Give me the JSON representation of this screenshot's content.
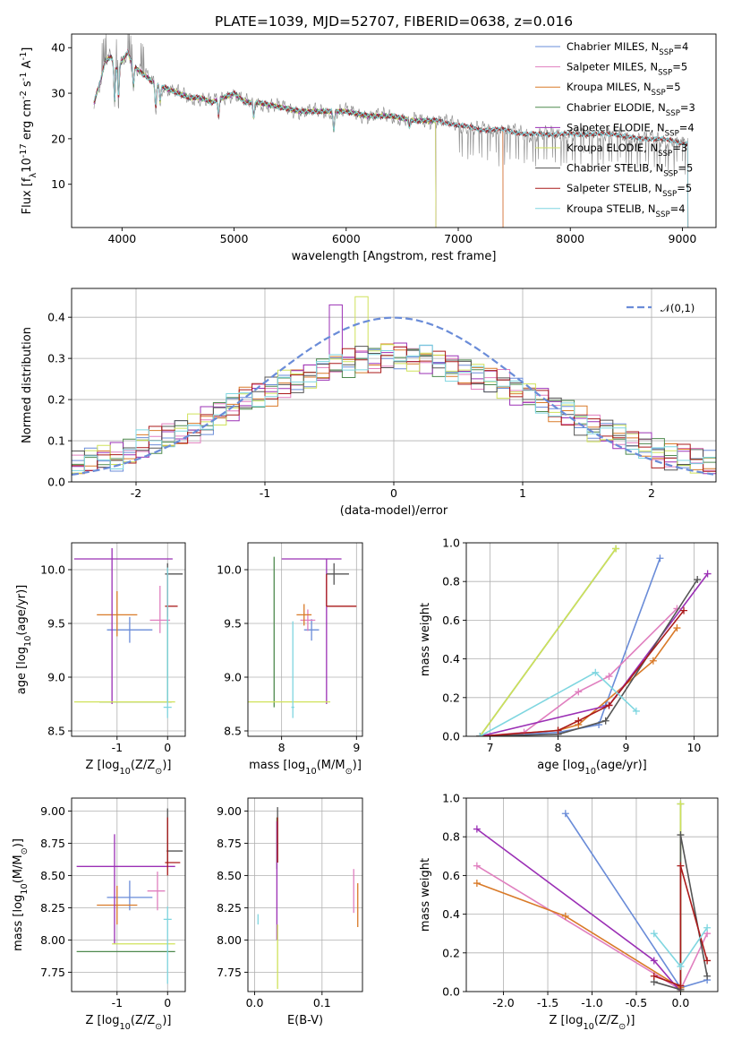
{
  "title": "PLATE=1039, MJD=52707, FIBERID=0638, z=0.016",
  "colors": {
    "Chabrier MILES": "#6a8cd8",
    "Salpeter MILES": "#e07fbf",
    "Kroupa MILES": "#d97a28",
    "Chabrier ELODIE": "#4f8a4f",
    "Salpeter ELODIE": "#9b30b5",
    "Kroupa ELODIE": "#cfe25a",
    "Chabrier STELIB": "#555555",
    "Salpeter STELIB": "#aa1a1a",
    "Kroupa STELIB": "#7fd6e0"
  },
  "chart_data": [
    {
      "type": "line",
      "id": "spectrum",
      "title": "PLATE=1039, MJD=52707, FIBERID=0638, z=0.016",
      "xlabel": "wavelength [Angstrom, rest frame]",
      "ylabel": "Flux [f$_\\lambda$10$^{-17}$ erg cm$^{-2}$ s$^{-1}$ A$^{-1}$]",
      "xlim": [
        3550,
        9300
      ],
      "ylim": [
        0.5,
        43
      ],
      "xticks": [
        4000,
        5000,
        6000,
        7000,
        8000,
        9000
      ],
      "yticks": [
        10,
        20,
        30,
        40
      ],
      "grid": false,
      "legend_position": "upper-right",
      "legend": [
        "Chabrier MILES, N$_{SSP}$=4",
        "Salpeter MILES, N$_{SSP}$=5",
        "Kroupa MILES, N$_{SSP}$=5",
        "Chabrier ELODIE, N$_{SSP}$=3",
        "Salpeter ELODIE, N$_{SSP}$=4",
        "Kroupa ELODIE, N$_{SSP}$=3",
        "Chabrier STELIB, N$_{SSP}$=5",
        "Salpeter STELIB, N$_{SSP}$=5",
        "Kroupa STELIB, N$_{SSP}$=4"
      ],
      "continuum": {
        "x": [
          3750,
          3800,
          3850,
          3900,
          3950,
          4000,
          4050,
          4100,
          4150,
          4200,
          4300,
          4400,
          4500,
          4600,
          4700,
          4800,
          4900,
          5000,
          5100,
          5200,
          5400,
          5600,
          5800,
          6000,
          6200,
          6400,
          6600,
          6800,
          7000,
          7200,
          7400,
          7600,
          7800,
          8000,
          8200,
          8400,
          8600,
          8800,
          9000
        ],
        "y": [
          28,
          32,
          37,
          38,
          36,
          37,
          39,
          36,
          35,
          34,
          32,
          31,
          30,
          29,
          29,
          28,
          29,
          30,
          28,
          28,
          27,
          26,
          26,
          26,
          25,
          25,
          24,
          24,
          23,
          22,
          22,
          21,
          21,
          21,
          21,
          21,
          20,
          20,
          19
        ]
      },
      "series_ranges": {
        "MILES": [
          3750,
          7400
        ],
        "ELODIE": [
          3750,
          6800
        ],
        "STELIB": [
          3750,
          9050
        ]
      }
    },
    {
      "type": "bar",
      "id": "residual_hist",
      "xlabel": "(data-model)/error",
      "ylabel": "Normed distribution",
      "xlim": [
        -2.5,
        2.5
      ],
      "ylim": [
        0,
        0.47
      ],
      "xticks": [
        -2,
        -1,
        0,
        1,
        2
      ],
      "yticks": [
        0.0,
        0.1,
        0.2,
        0.3,
        0.4
      ],
      "grid": true,
      "legend_position": "upper-right",
      "legend": [
        "$\\mathcal{N}(0,1)$"
      ],
      "bin_width": 0.1,
      "bin_start": -2.5,
      "envelope": [
        0.04,
        0.05,
        0.06,
        0.06,
        0.07,
        0.09,
        0.1,
        0.11,
        0.12,
        0.13,
        0.15,
        0.17,
        0.18,
        0.2,
        0.21,
        0.22,
        0.24,
        0.25,
        0.26,
        0.27,
        0.28,
        0.29,
        0.3,
        0.3,
        0.31,
        0.31,
        0.32,
        0.32,
        0.33,
        0.33,
        0.34,
        0.33,
        0.32,
        0.32,
        0.31,
        0.31,
        0.3,
        0.3,
        0.3,
        0.29,
        0.29,
        0.29,
        0.29,
        0.28,
        0.28,
        0.28,
        0.27,
        0.26,
        0.26,
        0.25,
        0.24,
        0.23,
        0.22,
        0.22,
        0.21,
        0.2,
        0.19,
        0.19,
        0.18,
        0.17,
        0.16,
        0.15,
        0.14,
        0.13,
        0.12,
        0.12,
        0.11,
        0.1,
        0.09,
        0.09,
        0.08,
        0.08,
        0.07,
        0.07,
        0.06,
        0.06,
        0.05,
        0.05,
        0.05,
        0.04,
        0.04,
        0.04,
        0.04,
        0.04,
        0.04,
        0.03,
        0.03,
        0.03,
        0.03,
        0.03,
        0.03,
        0.03,
        0.03,
        0.03,
        0.03,
        0.03,
        0.03,
        0.03,
        0.03,
        0.03
      ]
    },
    {
      "type": "scatter",
      "id": "age_vs_Z",
      "xlabel": "Z [log$_{10}$(Z/Z$_\\odot$)]",
      "ylabel": "age  [log$_{10}$(age/yr)]",
      "xlim": [
        -1.9,
        0.35
      ],
      "ylim": [
        8.45,
        10.25
      ],
      "xticks": [
        -1,
        0
      ],
      "yticks": [
        8.5,
        9.0,
        9.5,
        10.0
      ],
      "grid": true,
      "points": [
        {
          "series": "Chabrier MILES",
          "x": -0.75,
          "y": 9.44,
          "xerr": [
            0.45,
            0.45
          ],
          "yerr": [
            0.12,
            0.12
          ]
        },
        {
          "series": "Salpeter MILES",
          "x": -0.15,
          "y": 9.53,
          "xerr": [
            0.2,
            0.2
          ],
          "yerr": [
            0.12,
            0.32
          ]
        },
        {
          "series": "Kroupa MILES",
          "x": -1.0,
          "y": 9.58,
          "xerr": [
            0.4,
            0.4
          ],
          "yerr": [
            0.2,
            0.22
          ]
        },
        {
          "series": "Chabrier ELODIE",
          "x": 0.0,
          "y": 8.77,
          "xerr": [
            1.35,
            0.08
          ],
          "yerr": [
            0.0,
            1.1
          ]
        },
        {
          "series": "Salpeter ELODIE",
          "x": -1.1,
          "y": 10.1,
          "xerr": [
            0.75,
            1.2
          ],
          "yerr": [
            1.35,
            0.1
          ]
        },
        {
          "series": "Kroupa ELODIE",
          "x": -0.5,
          "y": 8.77,
          "xerr": [
            1.35,
            0.65
          ],
          "yerr": [
            0.0,
            0.0
          ]
        },
        {
          "series": "Chabrier STELIB",
          "x": 0.0,
          "y": 9.96,
          "xerr": [
            0.05,
            0.3
          ],
          "yerr": [
            0.1,
            0.1
          ]
        },
        {
          "series": "Salpeter STELIB",
          "x": 0.0,
          "y": 9.66,
          "xerr": [
            0.05,
            0.2
          ],
          "yerr": [
            0.1,
            0.3
          ]
        },
        {
          "series": "Kroupa STELIB",
          "x": 0.0,
          "y": 8.72,
          "xerr": [
            0.08,
            0.08
          ],
          "yerr": [
            0.1,
            1.3
          ]
        }
      ]
    },
    {
      "type": "scatter",
      "id": "age_vs_mass",
      "xlabel": "mass [log$_{10}$(M/M$_\\odot$)]",
      "ylabel": "",
      "xlim": [
        7.55,
        9.08
      ],
      "ylim": [
        8.45,
        10.25
      ],
      "xticks": [
        8,
        9
      ],
      "yticks": [
        8.5,
        9.0,
        9.5,
        10.0
      ],
      "grid": true,
      "points": [
        {
          "series": "Chabrier MILES",
          "x": 8.4,
          "y": 9.44,
          "xerr": [
            0.1,
            0.1
          ],
          "yerr": [
            0.1,
            0.1
          ]
        },
        {
          "series": "Salpeter MILES",
          "x": 8.35,
          "y": 9.53,
          "xerr": [
            0.1,
            0.1
          ],
          "yerr": [
            0.1,
            0.1
          ]
        },
        {
          "series": "Kroupa MILES",
          "x": 8.3,
          "y": 9.58,
          "xerr": [
            0.1,
            0.1
          ],
          "yerr": [
            0.1,
            0.1
          ]
        },
        {
          "series": "Chabrier ELODIE",
          "x": 7.9,
          "y": 8.77,
          "xerr": [
            0.0,
            0.0
          ],
          "yerr": [
            0.05,
            1.35
          ]
        },
        {
          "series": "Salpeter ELODIE",
          "x": 8.6,
          "y": 10.1,
          "xerr": [
            0.6,
            0.2
          ],
          "yerr": [
            1.35,
            0.0
          ]
        },
        {
          "series": "Kroupa ELODIE",
          "x": 7.95,
          "y": 8.77,
          "xerr": [
            0.4,
            0.7
          ],
          "yerr": [
            0.0,
            0.0
          ]
        },
        {
          "series": "Chabrier STELIB",
          "x": 8.7,
          "y": 9.96,
          "xerr": [
            0.1,
            0.2
          ],
          "yerr": [
            0.1,
            0.1
          ]
        },
        {
          "series": "Salpeter STELIB",
          "x": 8.6,
          "y": 9.66,
          "xerr": [
            0.0,
            0.4
          ],
          "yerr": [
            0.0,
            0.3
          ]
        },
        {
          "series": "Kroupa STELIB",
          "x": 8.15,
          "y": 8.72,
          "xerr": [
            0.02,
            0.02
          ],
          "yerr": [
            0.1,
            0.8
          ]
        }
      ]
    },
    {
      "type": "line",
      "id": "massweight_vs_age",
      "xlabel": "age  [log$_{10}$(age/yr)]",
      "ylabel": "mass weight",
      "xlim": [
        6.65,
        10.35
      ],
      "ylim": [
        0,
        1
      ],
      "xticks": [
        7,
        8,
        9,
        10
      ],
      "yticks": [
        0.0,
        0.2,
        0.4,
        0.6,
        0.8,
        1.0
      ],
      "grid": true,
      "series": [
        {
          "series": "Chabrier MILES",
          "x": [
            6.85,
            8.0,
            8.6,
            8.7,
            9.5
          ],
          "y": [
            0.0,
            0.02,
            0.06,
            0.16,
            0.92
          ]
        },
        {
          "series": "Salpeter MILES",
          "x": [
            6.85,
            7.5,
            8.3,
            8.75,
            9.75
          ],
          "y": [
            0.0,
            0.02,
            0.23,
            0.31,
            0.66
          ]
        },
        {
          "series": "Kroupa MILES",
          "x": [
            6.85,
            8.0,
            8.3,
            9.4,
            9.75
          ],
          "y": [
            0.0,
            0.03,
            0.06,
            0.39,
            0.56
          ]
        },
        {
          "series": "Chabrier ELODIE",
          "x": [
            6.85,
            8.85
          ],
          "y": [
            0.0,
            0.97
          ]
        },
        {
          "series": "Salpeter ELODIE",
          "x": [
            6.85,
            8.75,
            10.2
          ],
          "y": [
            0.0,
            0.16,
            0.84
          ]
        },
        {
          "series": "Kroupa ELODIE",
          "x": [
            6.85,
            8.85
          ],
          "y": [
            0.0,
            0.97
          ]
        },
        {
          "series": "Chabrier STELIB",
          "x": [
            6.85,
            8.0,
            8.7,
            10.05
          ],
          "y": [
            0.0,
            0.01,
            0.08,
            0.81
          ]
        },
        {
          "series": "Salpeter STELIB",
          "x": [
            6.85,
            8.0,
            8.3,
            8.75,
            9.85
          ],
          "y": [
            0.0,
            0.03,
            0.08,
            0.16,
            0.65
          ]
        },
        {
          "series": "Kroupa STELIB",
          "x": [
            6.85,
            8.55,
            9.15
          ],
          "y": [
            0.0,
            0.33,
            0.13
          ]
        }
      ]
    },
    {
      "type": "scatter",
      "id": "mass_vs_Z",
      "xlabel": "Z [log$_{10}$(Z/Z$_\\odot$)]",
      "ylabel": "mass [log$_{10}$(M/M$_\\odot$)]",
      "xlim": [
        -1.9,
        0.35
      ],
      "ylim": [
        7.6,
        9.1
      ],
      "xticks": [
        -1,
        0
      ],
      "yticks": [
        7.75,
        8.0,
        8.25,
        8.5,
        8.75,
        9.0
      ],
      "grid": true,
      "points": [
        {
          "series": "Chabrier MILES",
          "x": -0.75,
          "y": 8.33,
          "xerr": [
            0.45,
            0.45
          ],
          "yerr": [
            0.1,
            0.13
          ]
        },
        {
          "series": "Salpeter MILES",
          "x": -0.2,
          "y": 8.38,
          "xerr": [
            0.2,
            0.15
          ],
          "yerr": [
            0.15,
            0.15
          ]
        },
        {
          "series": "Kroupa MILES",
          "x": -1.0,
          "y": 8.27,
          "xerr": [
            0.4,
            0.4
          ],
          "yerr": [
            0.15,
            0.15
          ]
        },
        {
          "series": "Chabrier ELODIE",
          "x": -0.5,
          "y": 7.91,
          "xerr": [
            1.3,
            0.65
          ],
          "yerr": [
            0.0,
            0.0
          ]
        },
        {
          "series": "Salpeter ELODIE",
          "x": -1.05,
          "y": 8.57,
          "xerr": [
            0.75,
            1.2
          ],
          "yerr": [
            0.6,
            0.25
          ]
        },
        {
          "series": "Kroupa ELODIE",
          "x": -0.5,
          "y": 7.97,
          "xerr": [
            0.6,
            0.65
          ],
          "yerr": [
            0.0,
            0.0
          ]
        },
        {
          "series": "Chabrier STELIB",
          "x": 0.0,
          "y": 8.69,
          "xerr": [
            0.02,
            0.3
          ],
          "yerr": [
            0.1,
            0.33
          ]
        },
        {
          "series": "Salpeter STELIB",
          "x": 0.0,
          "y": 8.6,
          "xerr": [
            0.05,
            0.25
          ],
          "yerr": [
            0.1,
            0.35
          ]
        },
        {
          "series": "Kroupa STELIB",
          "x": 0.0,
          "y": 8.16,
          "xerr": [
            0.08,
            0.08
          ],
          "yerr": [
            0.5,
            0.1
          ]
        }
      ]
    },
    {
      "type": "scatter",
      "id": "mass_vs_EBV",
      "xlabel": "E(B-V)",
      "ylabel": "",
      "xlim": [
        -0.01,
        0.16
      ],
      "ylim": [
        7.6,
        9.1
      ],
      "xticks": [
        0.0,
        0.1
      ],
      "yticks": [
        7.75,
        8.0,
        8.25,
        8.5,
        8.75,
        9.0
      ],
      "grid": true,
      "points": [
        {
          "series": "Chabrier ELODIE",
          "x": 0.033,
          "y": 8.85,
          "xerr": [
            0,
            0
          ],
          "yerr": [
            0.3,
            0.1
          ]
        },
        {
          "series": "Salpeter ELODIE",
          "x": 0.033,
          "y": 8.27,
          "xerr": [
            0,
            0
          ],
          "yerr": [
            0.27,
            0.65
          ]
        },
        {
          "series": "Kroupa ELODIE",
          "x": 0.034,
          "y": 7.97,
          "xerr": [
            0,
            0
          ],
          "yerr": [
            0.35,
            0.15
          ]
        },
        {
          "series": "Chabrier STELIB",
          "x": 0.034,
          "y": 8.8,
          "xerr": [
            0,
            0
          ],
          "yerr": [
            0.2,
            0.23
          ]
        },
        {
          "series": "Salpeter STELIB",
          "x": 0.034,
          "y": 8.78,
          "xerr": [
            0,
            0
          ],
          "yerr": [
            0.18,
            0.17
          ]
        },
        {
          "series": "Kroupa STELIB",
          "x": 0.005,
          "y": 8.16,
          "xerr": [
            0,
            0
          ],
          "yerr": [
            0.04,
            0.04
          ]
        },
        {
          "series": "Salpeter MILES",
          "x": 0.147,
          "y": 8.38,
          "xerr": [
            0,
            0
          ],
          "yerr": [
            0.17,
            0.17
          ]
        },
        {
          "series": "Kroupa MILES",
          "x": 0.153,
          "y": 8.27,
          "xerr": [
            0,
            0
          ],
          "yerr": [
            0.17,
            0.17
          ]
        }
      ]
    },
    {
      "type": "line",
      "id": "massweight_vs_Z",
      "xlabel": "Z [log$_{10}$(Z/Z$_\\odot$)]",
      "ylabel": "mass weight",
      "xlim": [
        -2.42,
        0.42
      ],
      "ylim": [
        0,
        1
      ],
      "xticks": [
        -2.0,
        -1.5,
        -1.0,
        -0.5,
        0.0
      ],
      "yticks": [
        0.0,
        0.2,
        0.4,
        0.6,
        0.8,
        1.0
      ],
      "grid": true,
      "series": [
        {
          "series": "Chabrier MILES",
          "x": [
            -1.3,
            0.0,
            0.3
          ],
          "y": [
            0.92,
            0.02,
            0.06
          ]
        },
        {
          "series": "Salpeter MILES",
          "x": [
            -2.3,
            0.0,
            0.3
          ],
          "y": [
            0.65,
            0.01,
            0.3
          ]
        },
        {
          "series": "Kroupa MILES",
          "x": [
            -2.3,
            -1.3,
            0.0,
            0.0
          ],
          "y": [
            0.56,
            0.39,
            0.02,
            0.03
          ]
        },
        {
          "series": "Chabrier ELODIE",
          "x": [
            0.0,
            0.0
          ],
          "y": [
            0.97,
            0.0
          ]
        },
        {
          "series": "Salpeter ELODIE",
          "x": [
            -2.3,
            -0.3,
            0.0
          ],
          "y": [
            0.84,
            0.16,
            0.0
          ]
        },
        {
          "series": "Kroupa ELODIE",
          "x": [
            0.0,
            0.0
          ],
          "y": [
            0.97,
            0.0
          ]
        },
        {
          "series": "Chabrier STELIB",
          "x": [
            -0.3,
            0.0,
            0.0,
            0.3
          ],
          "y": [
            0.05,
            0.01,
            0.81,
            0.08
          ]
        },
        {
          "series": "Salpeter STELIB",
          "x": [
            -0.3,
            0.0,
            0.0,
            0.3
          ],
          "y": [
            0.08,
            0.03,
            0.65,
            0.16
          ]
        },
        {
          "series": "Kroupa STELIB",
          "x": [
            -0.3,
            0.0,
            0.3
          ],
          "y": [
            0.3,
            0.13,
            0.33
          ]
        }
      ]
    }
  ]
}
